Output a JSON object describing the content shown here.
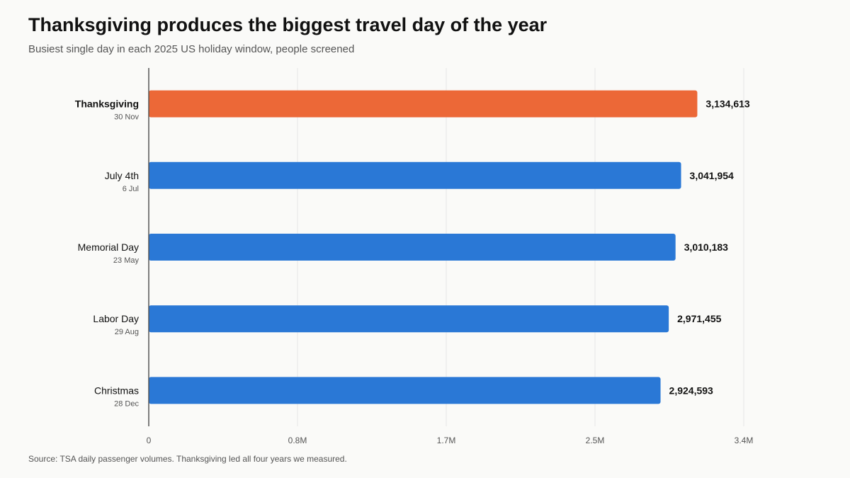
{
  "title": "Thanksgiving produces the biggest travel day of the year",
  "subtitle": "Busiest single day in each 2025 US holiday window, people screened",
  "source": "Source: TSA daily passenger volumes. Thanksgiving led all four years we measured.",
  "colors": {
    "highlight": "#ec6837",
    "default": "#2a78d6",
    "grid": "#e6e6e6",
    "axis": "#555555"
  },
  "chart_data": {
    "type": "bar",
    "orientation": "horizontal",
    "categories": [
      "Thanksgiving",
      "July 4th",
      "Memorial Day",
      "Labor Day",
      "Christmas"
    ],
    "dates": [
      "30 Nov",
      "6 Jul",
      "23 May",
      "29 Aug",
      "28 Dec"
    ],
    "values": [
      3134613,
      3041954,
      3010183,
      2971455,
      2924593
    ],
    "value_labels": [
      "3,134,613",
      "3,041,954",
      "3,010,183",
      "2,971,455",
      "2,924,593"
    ],
    "highlight_index": 0,
    "xlim": [
      0,
      3400000
    ],
    "xticks": [
      0,
      850000,
      1700000,
      2550000,
      3400000
    ],
    "xtick_labels": [
      "0",
      "0.8M",
      "1.7M",
      "2.5M",
      "3.4M"
    ],
    "xlabel": "",
    "ylabel": "",
    "grid": true,
    "legend": "none"
  }
}
